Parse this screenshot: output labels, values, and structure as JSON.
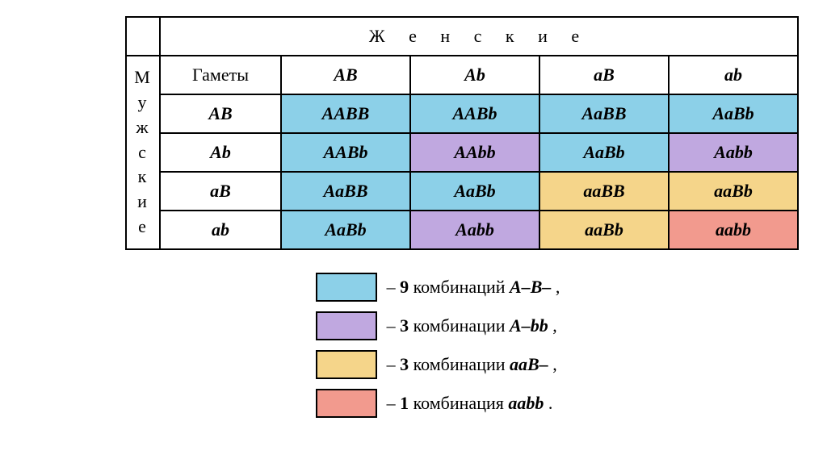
{
  "colors": {
    "blue": "#8cd0e8",
    "purple": "#c0a8e0",
    "yellow": "#f5d58a",
    "red": "#f29a8e",
    "white": "#ffffff",
    "border": "#000000"
  },
  "header": {
    "female_label": "Ж е н с к и е",
    "male_label": "М\nу\nж\nс\nк\nи\nе",
    "gametes_label": "Гаметы"
  },
  "col_gametes": [
    "AB",
    "Ab",
    "aB",
    "ab"
  ],
  "row_gametes": [
    "AB",
    "Ab",
    "aB",
    "ab"
  ],
  "grid": [
    [
      {
        "geno": "AABB",
        "color": "blue"
      },
      {
        "geno": "AABb",
        "color": "blue"
      },
      {
        "geno": "AaBB",
        "color": "blue"
      },
      {
        "geno": "AaBb",
        "color": "blue"
      }
    ],
    [
      {
        "geno": "AABb",
        "color": "blue"
      },
      {
        "geno": "AAbb",
        "color": "purple"
      },
      {
        "geno": "AaBb",
        "color": "blue"
      },
      {
        "geno": "Aabb",
        "color": "purple"
      }
    ],
    [
      {
        "geno": "AaBB",
        "color": "blue"
      },
      {
        "geno": "AaBb",
        "color": "blue"
      },
      {
        "geno": "aaBB",
        "color": "yellow"
      },
      {
        "geno": "aaBb",
        "color": "yellow"
      }
    ],
    [
      {
        "geno": "AaBb",
        "color": "blue"
      },
      {
        "geno": "Aabb",
        "color": "purple"
      },
      {
        "geno": "aaBb",
        "color": "yellow"
      },
      {
        "geno": "aabb",
        "color": "red"
      }
    ]
  ],
  "legend": [
    {
      "color": "blue",
      "count": "9",
      "word": "комбинаций",
      "pattern": "A–B–",
      "tail": ","
    },
    {
      "color": "purple",
      "count": "3",
      "word": "комбинации",
      "pattern": "A–bb",
      "tail": ","
    },
    {
      "color": "yellow",
      "count": "3",
      "word": "комбинации",
      "pattern": "aaB–",
      "tail": ","
    },
    {
      "color": "red",
      "count": "1",
      "word": "комбинация",
      "pattern": "aabb",
      "tail": "."
    }
  ],
  "dash": "–"
}
